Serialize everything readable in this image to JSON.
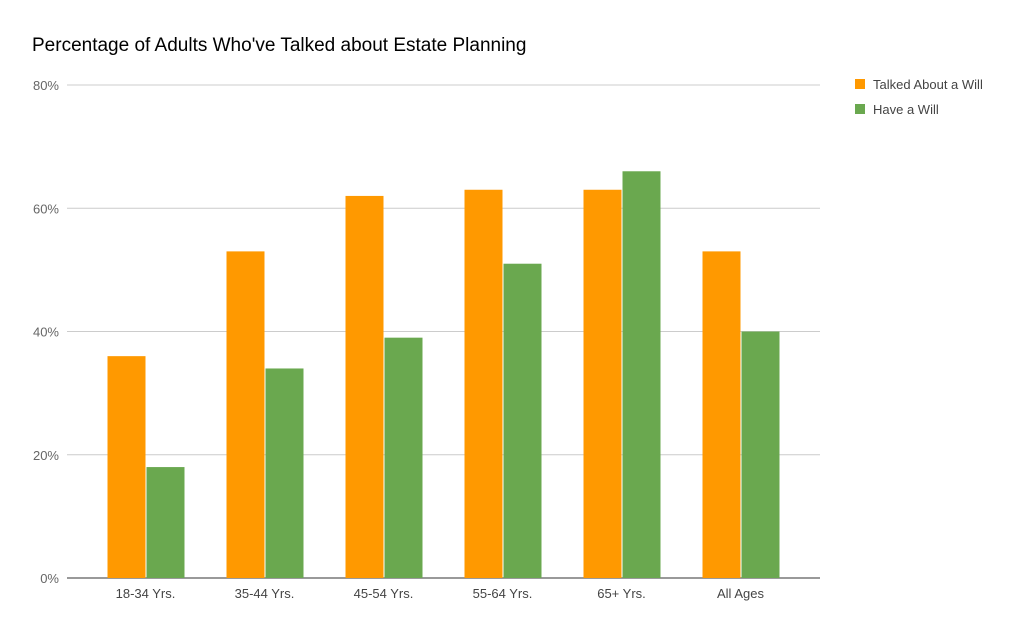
{
  "chart_data": {
    "type": "bar",
    "title": "Percentage of Adults Who've Talked about Estate Planning",
    "categories": [
      "18-34 Yrs.",
      "35-44 Yrs.",
      "45-54 Yrs.",
      "55-64 Yrs.",
      "65+ Yrs.",
      "All Ages"
    ],
    "series": [
      {
        "name": "Talked About a Will",
        "color": "#ff9900",
        "values": [
          36,
          53,
          62,
          63,
          63,
          53
        ]
      },
      {
        "name": "Have a Will",
        "color": "#6aa84f",
        "values": [
          18,
          34,
          39,
          51,
          66,
          40
        ]
      }
    ],
    "xlabel": "",
    "ylabel": "",
    "ylim": [
      0,
      80
    ],
    "yticks": [
      "0%",
      "20%",
      "40%",
      "60%",
      "80%"
    ],
    "grid": true,
    "legend": "right"
  }
}
